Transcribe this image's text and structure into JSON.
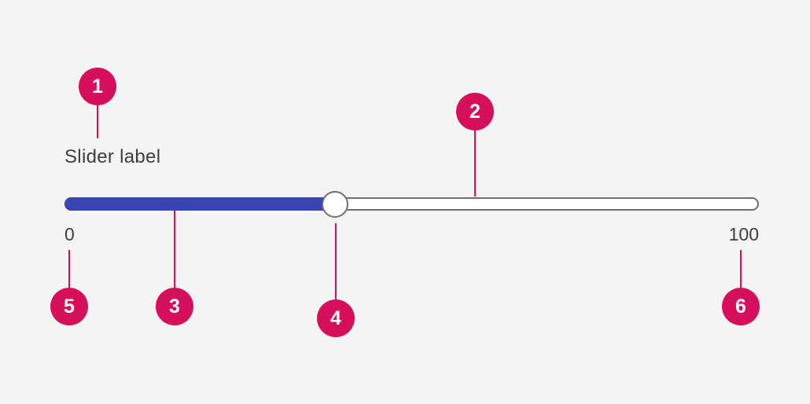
{
  "slider": {
    "label": "Slider label",
    "min_label": "0",
    "max_label": "100",
    "value_fraction": 0.39,
    "fill_color": "#3b45b2",
    "track_color": "#ffffff"
  },
  "callouts": {
    "marker_color": "#d50f5a",
    "items": [
      "1",
      "2",
      "3",
      "4",
      "5",
      "6"
    ]
  }
}
